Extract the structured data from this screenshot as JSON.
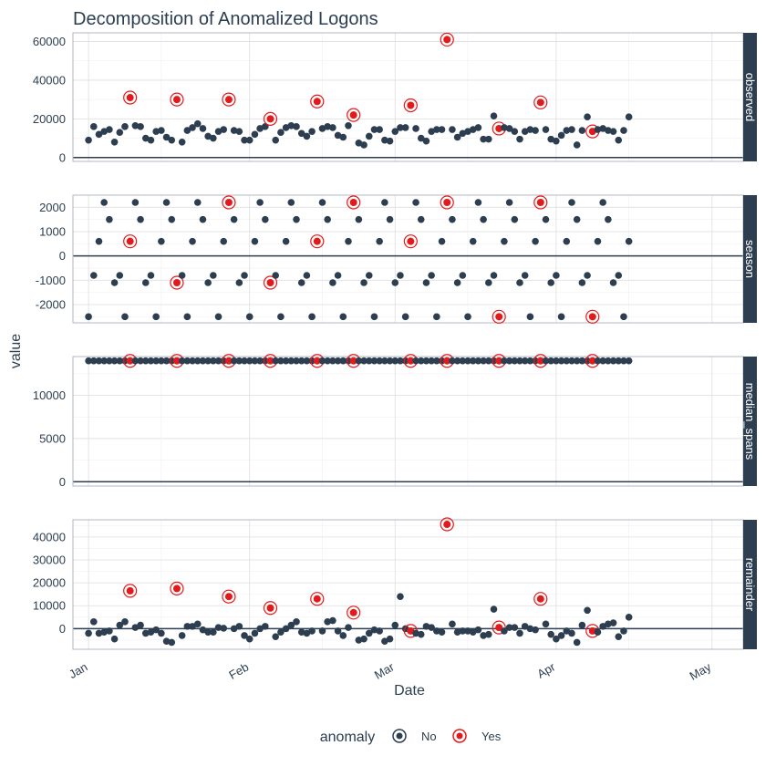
{
  "chart_data": {
    "type": "scatter",
    "title": "Decomposition of Anomalized Logons",
    "xlabel": "Date",
    "ylabel": "value",
    "x_ticks": [
      "Jan",
      "Feb",
      "Mar",
      "Apr",
      "May"
    ],
    "x_range": [
      "2018-12-29",
      "2019-05-07"
    ],
    "legend": {
      "title": "anomaly",
      "position": "bottom",
      "entries": [
        {
          "label": "No",
          "color": "#2c3e50"
        },
        {
          "label": "Yes",
          "color": "#e31a1c"
        }
      ]
    },
    "colors": {
      "no": "#2c3e50",
      "yes": "#e31a1c",
      "strip": "#2c3e50",
      "grid": "#dedede"
    },
    "panels": [
      {
        "strip": "observed",
        "ylim": [
          -2000,
          64500
        ],
        "y_ticks": [
          0,
          20000,
          40000,
          60000
        ],
        "y_tick_labels": [
          "0",
          "20000",
          "40000",
          "60000"
        ]
      },
      {
        "strip": "season",
        "ylim": [
          -2750,
          2500
        ],
        "y_ticks": [
          -2000,
          -1000,
          0,
          1000,
          2000
        ],
        "y_tick_labels": [
          "-2000",
          "-1000",
          "0",
          "1000",
          "2000"
        ]
      },
      {
        "strip": "median_spans",
        "ylim": [
          -500,
          14500
        ],
        "y_ticks": [
          0,
          5000,
          10000
        ],
        "y_tick_labels": [
          "0",
          "5000",
          "10000"
        ]
      },
      {
        "strip": "remainder",
        "ylim": [
          -9000,
          47500
        ],
        "y_ticks": [
          0,
          10000,
          20000,
          30000,
          40000
        ],
        "y_tick_labels": [
          "0",
          "10000",
          "20000",
          "30000",
          "40000"
        ]
      }
    ],
    "start_date": "2019-01-01",
    "observed": [
      9000,
      16000,
      12000,
      13500,
      14500,
      8000,
      13000,
      16000,
      31000,
      16500,
      16000,
      10000,
      9000,
      13500,
      14000,
      10500,
      9000,
      30000,
      8000,
      14000,
      15500,
      17500,
      15000,
      11000,
      10000,
      13500,
      14500,
      30000,
      14000,
      13500,
      9000,
      9000,
      12000,
      15000,
      16000,
      20000,
      9000,
      13000,
      15500,
      16500,
      16000,
      12500,
      11000,
      13500,
      29000,
      15000,
      16000,
      15500,
      11500,
      10500,
      16500,
      22000,
      7500,
      6500,
      11000,
      14500,
      14500,
      9000,
      8500,
      13500,
      15500,
      15500,
      27000,
      15000,
      10000,
      8500,
      13500,
      14500,
      14500,
      61000,
      14500,
      10500,
      12500,
      13500,
      14500,
      15500,
      9500,
      9500,
      21500,
      15000,
      15500,
      15000,
      13500,
      9500,
      13500,
      14500,
      14000,
      28500,
      14500,
      9500,
      8500,
      11500,
      14000,
      14500,
      6500,
      14000,
      21000,
      13500,
      14500,
      15000,
      14000,
      13500,
      9000,
      14000,
      21000
    ],
    "season": [
      -2500,
      -800,
      600,
      2200,
      1500,
      -1100,
      -800,
      -2500,
      600,
      2200,
      1500,
      -1100,
      -800,
      -2500,
      600,
      2200,
      1500,
      -1100,
      -800,
      -2500,
      600,
      2200,
      1500,
      -1100,
      -800,
      -2500,
      600,
      2200,
      1500,
      -1100,
      -800,
      -2500,
      600,
      2200,
      1500,
      -1100,
      -800,
      -2500,
      600,
      2200,
      1500,
      -1100,
      -800,
      -2500,
      600,
      2200,
      1500,
      -1100,
      -800,
      -2500,
      600,
      2200,
      1500,
      -1100,
      -800,
      -2500,
      600,
      2200,
      1500,
      -1100,
      -800,
      -2500,
      600,
      2200,
      1500,
      -1100,
      -800,
      -2500,
      600,
      2200,
      1500,
      -1100,
      -800,
      -2500,
      600,
      2200,
      1500,
      -1100,
      -800,
      -2500,
      600,
      2200,
      1500,
      -1100,
      -800,
      -2500,
      600,
      2200,
      1500,
      -1100,
      -800,
      -2500,
      600,
      2200,
      1500,
      -1100,
      -800,
      -2500,
      600,
      2200,
      1500,
      -1100,
      -800,
      -2500,
      600,
      2200,
      1500,
      -1100,
      -800,
      -2500,
      600,
      2200
    ],
    "median_spans_value": 14000,
    "remainder": [
      -2000,
      3000,
      -2000,
      -1500,
      -1000,
      -4500,
      1500,
      3000,
      16500,
      500,
      1500,
      -2000,
      -1500,
      -500,
      -2000,
      -5500,
      -6000,
      17500,
      -3000,
      1000,
      1000,
      2000,
      -500,
      -1500,
      -1500,
      500,
      200,
      14000,
      0,
      1000,
      -3000,
      -4500,
      -2000,
      0,
      1000,
      9000,
      -3500,
      -1500,
      0,
      1500,
      3000,
      -1500,
      -2000,
      -1000,
      13000,
      -1000,
      3000,
      3500,
      -1000,
      -3000,
      500,
      7000,
      -5000,
      -4500,
      -2000,
      -500,
      -1000,
      -5500,
      -4500,
      1500,
      14000,
      0,
      -1000,
      -2000,
      -2500,
      1000,
      500,
      -1000,
      -1500,
      45500,
      2000,
      -1500,
      -1000,
      -1000,
      -1500,
      -500,
      -3000,
      -2500,
      8500,
      500,
      -1000,
      500,
      500,
      -2000,
      1000,
      0,
      -500,
      13000,
      2000,
      -2500,
      -4500,
      -3000,
      -1000,
      -2000,
      -6000,
      1500,
      8000,
      -1000,
      -1500,
      1000,
      2000,
      2500,
      -3500,
      -1000,
      5000
    ],
    "anomaly_indices": [
      8,
      17,
      27,
      35,
      44,
      51,
      62,
      69,
      79,
      87,
      97
    ]
  }
}
